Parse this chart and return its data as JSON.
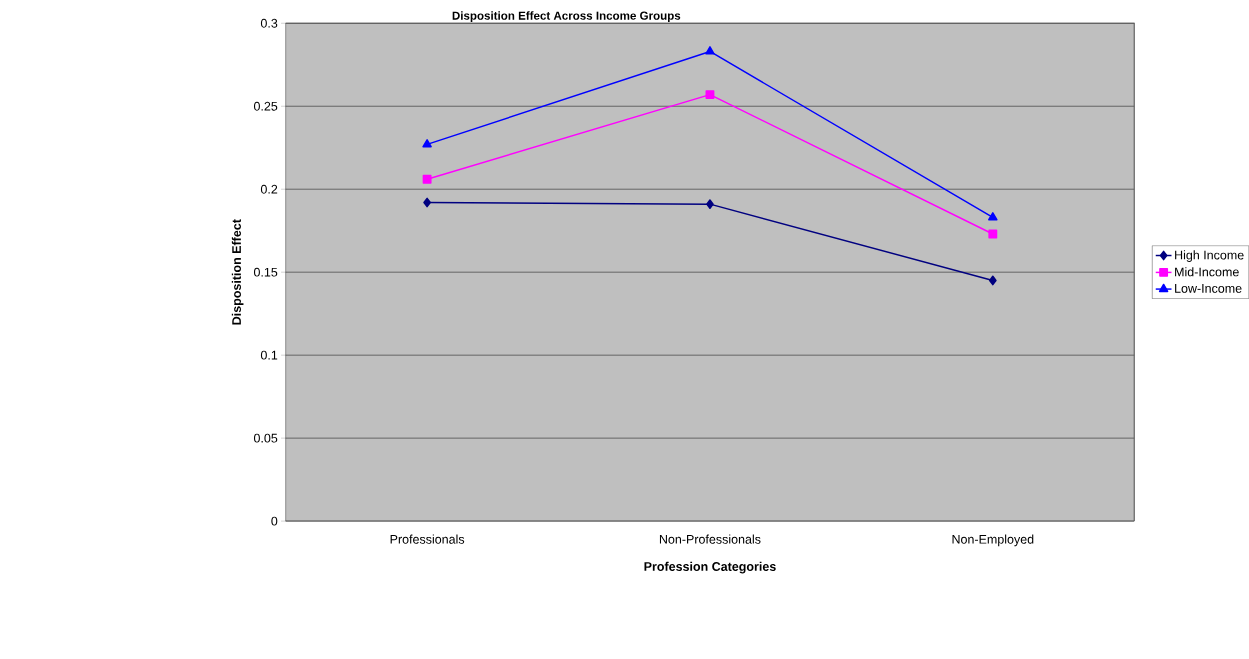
{
  "chart_data": {
    "type": "line",
    "title": "Disposition Effect Across Income Groups",
    "xlabel": "Profession Categories",
    "ylabel": "Disposition Effect",
    "categories": [
      "Professionals",
      "Non-Professionals",
      "Non-Employed"
    ],
    "series": [
      {
        "name": "High Income",
        "color": "#000080",
        "marker": "diamond",
        "values": [
          0.192,
          0.191,
          0.145
        ]
      },
      {
        "name": "Mid-Income",
        "color": "#ff00ff",
        "marker": "square",
        "values": [
          0.206,
          0.257,
          0.173
        ]
      },
      {
        "name": "Low-Income",
        "color": "#0000ff",
        "marker": "triangle",
        "values": [
          0.227,
          0.283,
          0.183
        ]
      }
    ],
    "ylim": [
      0,
      0.3
    ],
    "yticks": [
      0,
      0.05,
      0.1,
      0.15,
      0.2,
      0.25,
      0.3
    ],
    "grid": "y",
    "legend": "right",
    "line_style": "solid"
  }
}
